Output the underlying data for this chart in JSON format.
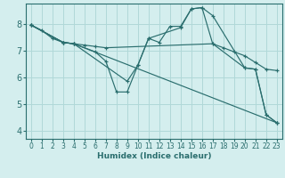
{
  "xlabel": "Humidex (Indice chaleur)",
  "background_color": "#d4eeee",
  "grid_color": "#b0d8d8",
  "line_color": "#2a6e6e",
  "xlim": [
    -0.5,
    23.5
  ],
  "ylim": [
    3.7,
    8.75
  ],
  "xticks": [
    0,
    1,
    2,
    3,
    4,
    5,
    6,
    7,
    8,
    9,
    10,
    11,
    12,
    13,
    14,
    15,
    16,
    17,
    18,
    19,
    20,
    21,
    22,
    23
  ],
  "yticks": [
    4,
    5,
    6,
    7,
    8
  ],
  "lines": [
    {
      "x": [
        0,
        1,
        2,
        3,
        4,
        5,
        6,
        7,
        17,
        18,
        19,
        20,
        21,
        22,
        23
      ],
      "y": [
        7.95,
        7.75,
        7.45,
        7.3,
        7.25,
        7.2,
        7.15,
        7.1,
        7.25,
        7.1,
        6.95,
        6.8,
        6.55,
        6.3,
        6.25
      ]
    },
    {
      "x": [
        0,
        3,
        4,
        23
      ],
      "y": [
        7.95,
        7.3,
        7.25,
        4.3
      ]
    },
    {
      "x": [
        0,
        3,
        4,
        6,
        7,
        8,
        9,
        10,
        11,
        12,
        13,
        14,
        15,
        16,
        17,
        20,
        21,
        22,
        23
      ],
      "y": [
        7.95,
        7.3,
        7.25,
        6.95,
        6.6,
        5.45,
        5.45,
        6.45,
        7.45,
        7.3,
        7.9,
        7.9,
        8.55,
        8.6,
        8.3,
        6.35,
        6.3,
        4.6,
        4.3
      ]
    },
    {
      "x": [
        0,
        3,
        4,
        9,
        10,
        11,
        14,
        15,
        16,
        17,
        20,
        21,
        22,
        23
      ],
      "y": [
        7.95,
        7.3,
        7.25,
        5.85,
        6.45,
        7.45,
        7.85,
        8.55,
        8.6,
        7.25,
        6.35,
        6.3,
        4.6,
        4.3
      ]
    }
  ]
}
